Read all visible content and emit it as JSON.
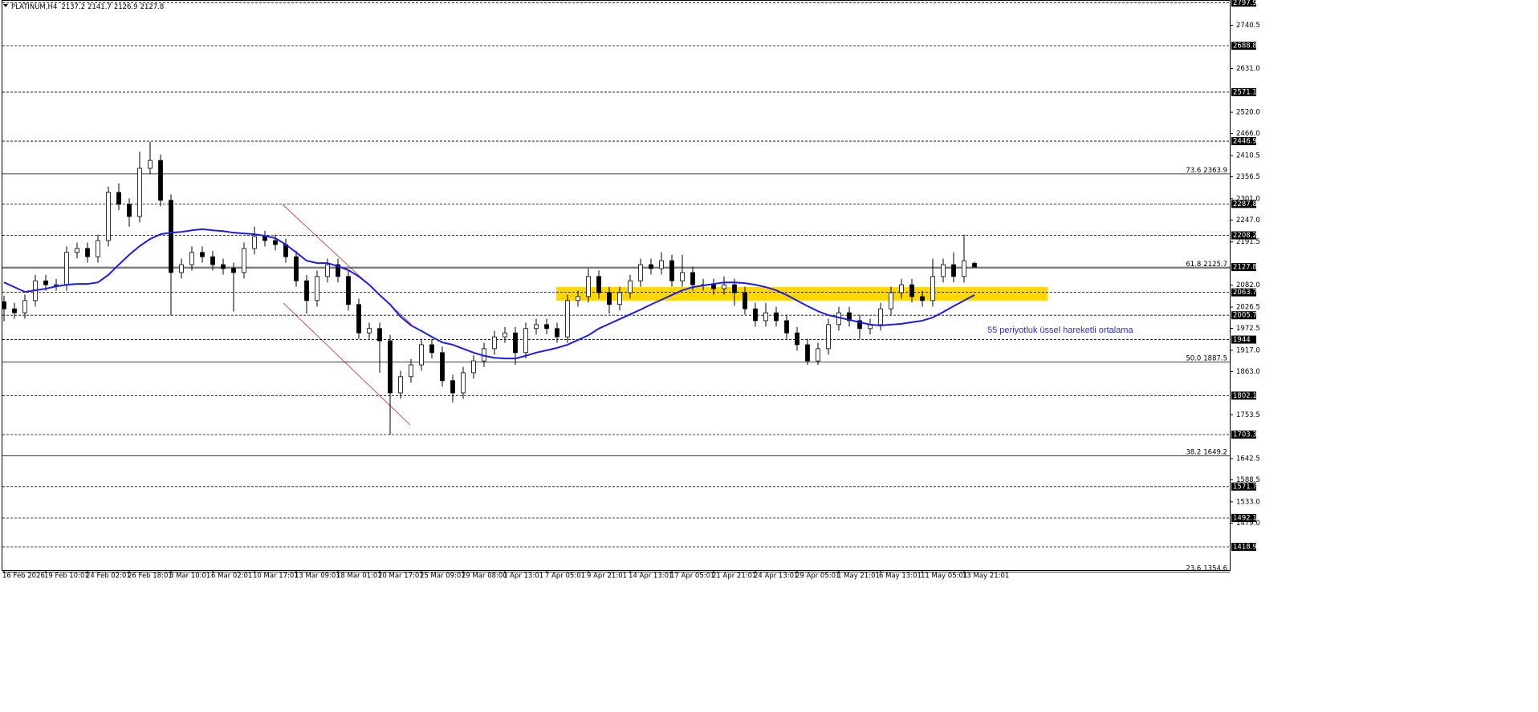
{
  "chart_data": {
    "type": "candlestick",
    "symbol": "PLATINUM,H4",
    "categories": [
      "16 Feb 2026",
      null,
      null,
      null,
      "19 Feb 10:01",
      null,
      null,
      null,
      "24 Feb 02:01",
      null,
      null,
      null,
      "26 Feb 18:01",
      null,
      null,
      null,
      "3 Mar 10:01",
      null,
      null,
      null,
      "6 Mar 02:01",
      null,
      null,
      null,
      "10 Mar 17:01",
      null,
      null,
      null,
      "13 Mar 09:01",
      null,
      null,
      null,
      "18 Mar 01:01",
      null,
      null,
      null,
      "20 Mar 17:01",
      null,
      null,
      null,
      "25 Mar 09:01",
      null,
      null,
      null,
      "29 Mar 08:00",
      null,
      null,
      null,
      "1 Apr 13:01",
      null,
      null,
      null,
      "7 Apr 05:01",
      null,
      null,
      null,
      "9 Apr 21:01",
      null,
      null,
      null,
      "14 Apr 13:01",
      null,
      null,
      null,
      "17 Apr 05:01",
      null,
      null,
      null,
      "21 Apr 21:01",
      null,
      null,
      null,
      "24 Apr 13:01",
      null,
      null,
      null,
      "29 Apr 05:01",
      null,
      null,
      null,
      "1 May 21:01",
      null,
      null,
      null,
      "6 May 13:01",
      null,
      null,
      null,
      "11 May 05:01",
      null,
      null,
      null,
      "13 May 21:01",
      null
    ],
    "open": [
      2040,
      2022,
      2012,
      2043,
      2093,
      2083,
      2083,
      2165,
      2175,
      2154,
      2195,
      2317,
      2287,
      2256,
      2378,
      2398,
      2297,
      2114,
      2134,
      2165,
      2154,
      2134,
      2124,
      2114,
      2175,
      2205,
      2195,
      2185,
      2154,
      2093,
      2043,
      2104,
      2134,
      2104,
      2033,
      1961,
      1972,
      1941,
      1809,
      1850,
      1880,
      1931,
      1911,
      1840,
      1809,
      1860,
      1890,
      1921,
      1951,
      1961,
      1911,
      1972,
      1982,
      1972,
      1951,
      2043,
      2053,
      2104,
      2063,
      2033,
      2063,
      2093,
      2134,
      2124,
      2144,
      2093,
      2114,
      2083,
      2083,
      2073,
      2083,
      2063,
      2022,
      1992,
      2012,
      1992,
      1961,
      1931,
      1890,
      1921,
      1982,
      2012,
      1992,
      1972,
      1982,
      2022,
      2063,
      2083,
      2053,
      2043,
      2104,
      2134,
      2104,
      2137.2
    ],
    "high": [
      2055,
      2037,
      2058,
      2108,
      2108,
      2098,
      2180,
      2190,
      2190,
      2210,
      2332,
      2340,
      2302,
      2420,
      2445,
      2413,
      2312,
      2149,
      2180,
      2180,
      2169,
      2149,
      2139,
      2190,
      2230,
      2220,
      2210,
      2200,
      2169,
      2108,
      2119,
      2149,
      2149,
      2119,
      2048,
      1987,
      1987,
      1956,
      1865,
      1895,
      1946,
      1946,
      1926,
      1855,
      1875,
      1905,
      1936,
      1966,
      1976,
      1976,
      1987,
      1997,
      1997,
      1987,
      2058,
      2068,
      2124,
      2119,
      2078,
      2078,
      2108,
      2149,
      2149,
      2165,
      2159,
      2159,
      2129,
      2098,
      2098,
      2104,
      2098,
      2078,
      2037,
      2037,
      2027,
      2007,
      1976,
      1946,
      1936,
      1997,
      2027,
      2027,
      2007,
      1997,
      2037,
      2078,
      2098,
      2098,
      2068,
      2149,
      2149,
      2165,
      2210,
      2141.7
    ],
    "low": [
      1990,
      1997,
      1997,
      2028,
      2068,
      2068,
      2068,
      2150,
      2139,
      2139,
      2180,
      2272,
      2230,
      2241,
      2363,
      2282,
      2005,
      2099,
      2119,
      2139,
      2119,
      2109,
      2015,
      2099,
      2160,
      2180,
      2170,
      2139,
      2078,
      2010,
      2028,
      2089,
      2089,
      2018,
      1946,
      1946,
      1860,
      1703,
      1794,
      1835,
      1865,
      1896,
      1825,
      1785,
      1794,
      1845,
      1875,
      1906,
      1936,
      1880,
      1896,
      1957,
      1957,
      1936,
      1936,
      2028,
      2038,
      2048,
      2010,
      2018,
      2048,
      2078,
      2109,
      2109,
      2078,
      2078,
      2068,
      2068,
      2058,
      2058,
      2030,
      2007,
      1977,
      1977,
      1977,
      1946,
      1916,
      1880,
      1880,
      1906,
      1967,
      1977,
      1946,
      1957,
      1967,
      2007,
      2048,
      2038,
      2028,
      2028,
      2089,
      2089,
      2089,
      2126.9
    ],
    "close": [
      2022,
      2012,
      2043,
      2093,
      2083,
      2083,
      2165,
      2175,
      2154,
      2195,
      2317,
      2287,
      2256,
      2378,
      2398,
      2297,
      2114,
      2134,
      2165,
      2154,
      2134,
      2124,
      2114,
      2175,
      2205,
      2195,
      2185,
      2154,
      2093,
      2043,
      2104,
      2134,
      2104,
      2033,
      1961,
      1972,
      1941,
      1809,
      1850,
      1880,
      1931,
      1911,
      1840,
      1809,
      1860,
      1890,
      1921,
      1951,
      1961,
      1911,
      1972,
      1982,
      1972,
      1951,
      2043,
      2053,
      2104,
      2063,
      2033,
      2063,
      2093,
      2134,
      2124,
      2144,
      2093,
      2114,
      2083,
      2083,
      2073,
      2083,
      2063,
      2022,
      1992,
      2012,
      1992,
      1961,
      1931,
      1890,
      1921,
      1982,
      2012,
      1992,
      1972,
      1982,
      2022,
      2063,
      2083,
      2053,
      2043,
      2104,
      2134,
      2104,
      2144,
      2127.8
    ],
    "ema": {
      "color": "#1c1cf0",
      "values": [
        2089,
        2077,
        2065,
        2069,
        2073,
        2079,
        2083,
        2085,
        2085,
        2089,
        2108,
        2134,
        2159,
        2181,
        2199,
        2211,
        2215,
        2217,
        2221,
        2224,
        2221,
        2219,
        2215,
        2213,
        2211,
        2207,
        2201,
        2185,
        2165,
        2144,
        2138,
        2138,
        2130,
        2120,
        2104,
        2083,
        2057,
        2033,
        2002,
        1980,
        1966,
        1951,
        1937,
        1931,
        1921,
        1911,
        1903,
        1898,
        1896,
        1896,
        1903,
        1911,
        1917,
        1923,
        1931,
        1943,
        1955,
        1972,
        1984,
        1996,
        2008,
        2020,
        2033,
        2045,
        2057,
        2069,
        2077,
        2081,
        2085,
        2089,
        2089,
        2087,
        2083,
        2077,
        2069,
        2057,
        2043,
        2029,
        2016,
        2006,
        2000,
        1994,
        1988,
        1982,
        1980,
        1982,
        1984,
        1988,
        1992,
        2000,
        2014,
        2029,
        2043,
        2057
      ]
    },
    "annotation": {
      "text": "55 periyotluk üssel hareketli ortalama",
      "color": "#2a2ae8"
    },
    "zone": {
      "from": 2043,
      "to": 2077,
      "color": "#ffd700"
    },
    "levels": [
      2797.9,
      2688.8,
      2571.1,
      2446.9,
      2287.8,
      2208.2,
      2063.7,
      2005.7,
      1944.0,
      1802.1,
      1703.3,
      1571.7,
      1492.1,
      1418.9
    ],
    "fib": [
      {
        "ratio": "73.6",
        "value": 2363.9
      },
      {
        "ratio": "61.8",
        "value": 2125.7
      },
      {
        "ratio": "50.0",
        "value": 1887.5
      },
      {
        "ratio": "38.2",
        "value": 1649.2
      },
      {
        "ratio": "23.6",
        "value": 1354.6
      }
    ],
    "ylim": [
      1362,
      2804.6
    ],
    "yticks": [
      2740.5,
      {
        "value": 2631,
        "label": "2631.0"
      },
      {
        "value": 2520,
        "label": "2520.0"
      },
      {
        "value": 2466,
        "label": "2466.0"
      },
      2410.5,
      2356.5,
      {
        "value": 2301,
        "label": "2301.0"
      },
      {
        "value": 2247,
        "label": "2247.0"
      },
      2191.5,
      {
        "value": 2082,
        "label": "2082.0"
      },
      2026.5,
      1972.5,
      {
        "value": 1917,
        "label": "1917.0"
      },
      {
        "value": 1863,
        "label": "1863.0"
      },
      1753.5,
      1642.5,
      1588.5,
      {
        "value": 1533,
        "label": "1533.0"
      },
      {
        "value": 1479,
        "label": "1479.0"
      }
    ],
    "grid": false
  }
}
